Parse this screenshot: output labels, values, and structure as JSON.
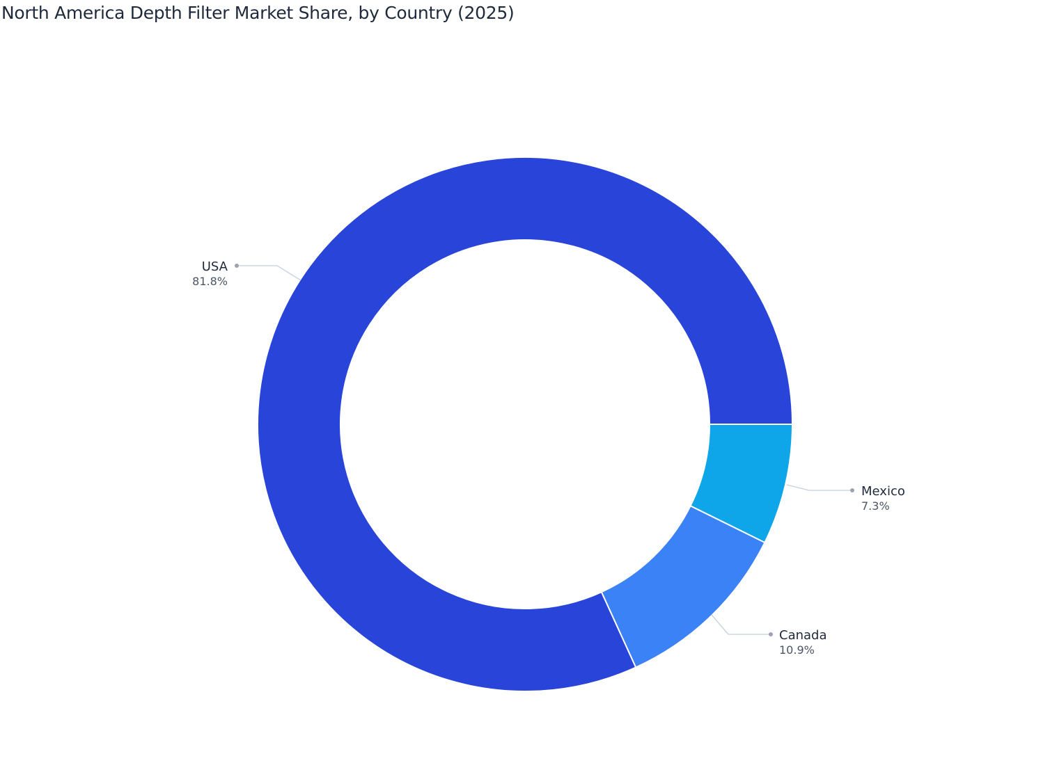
{
  "title": "North America Depth Filter Market Share, by Country (2025)",
  "chart_data": {
    "type": "pie",
    "subtype": "donut",
    "title": "North America Depth Filter Market Share, by Country (2025)",
    "categories": [
      "Mexico",
      "Canada",
      "USA"
    ],
    "values": [
      7.3,
      10.9,
      81.8
    ],
    "unit": "%",
    "colors": [
      "#0ea5e9",
      "#3b82f6",
      "#2844d9"
    ],
    "labels": [
      {
        "name": "USA",
        "value": "81.8%"
      },
      {
        "name": "Mexico",
        "value": "7.3%"
      },
      {
        "name": "Canada",
        "value": "10.9%"
      }
    ],
    "legend": "none",
    "hole_ratio": 0.69
  }
}
